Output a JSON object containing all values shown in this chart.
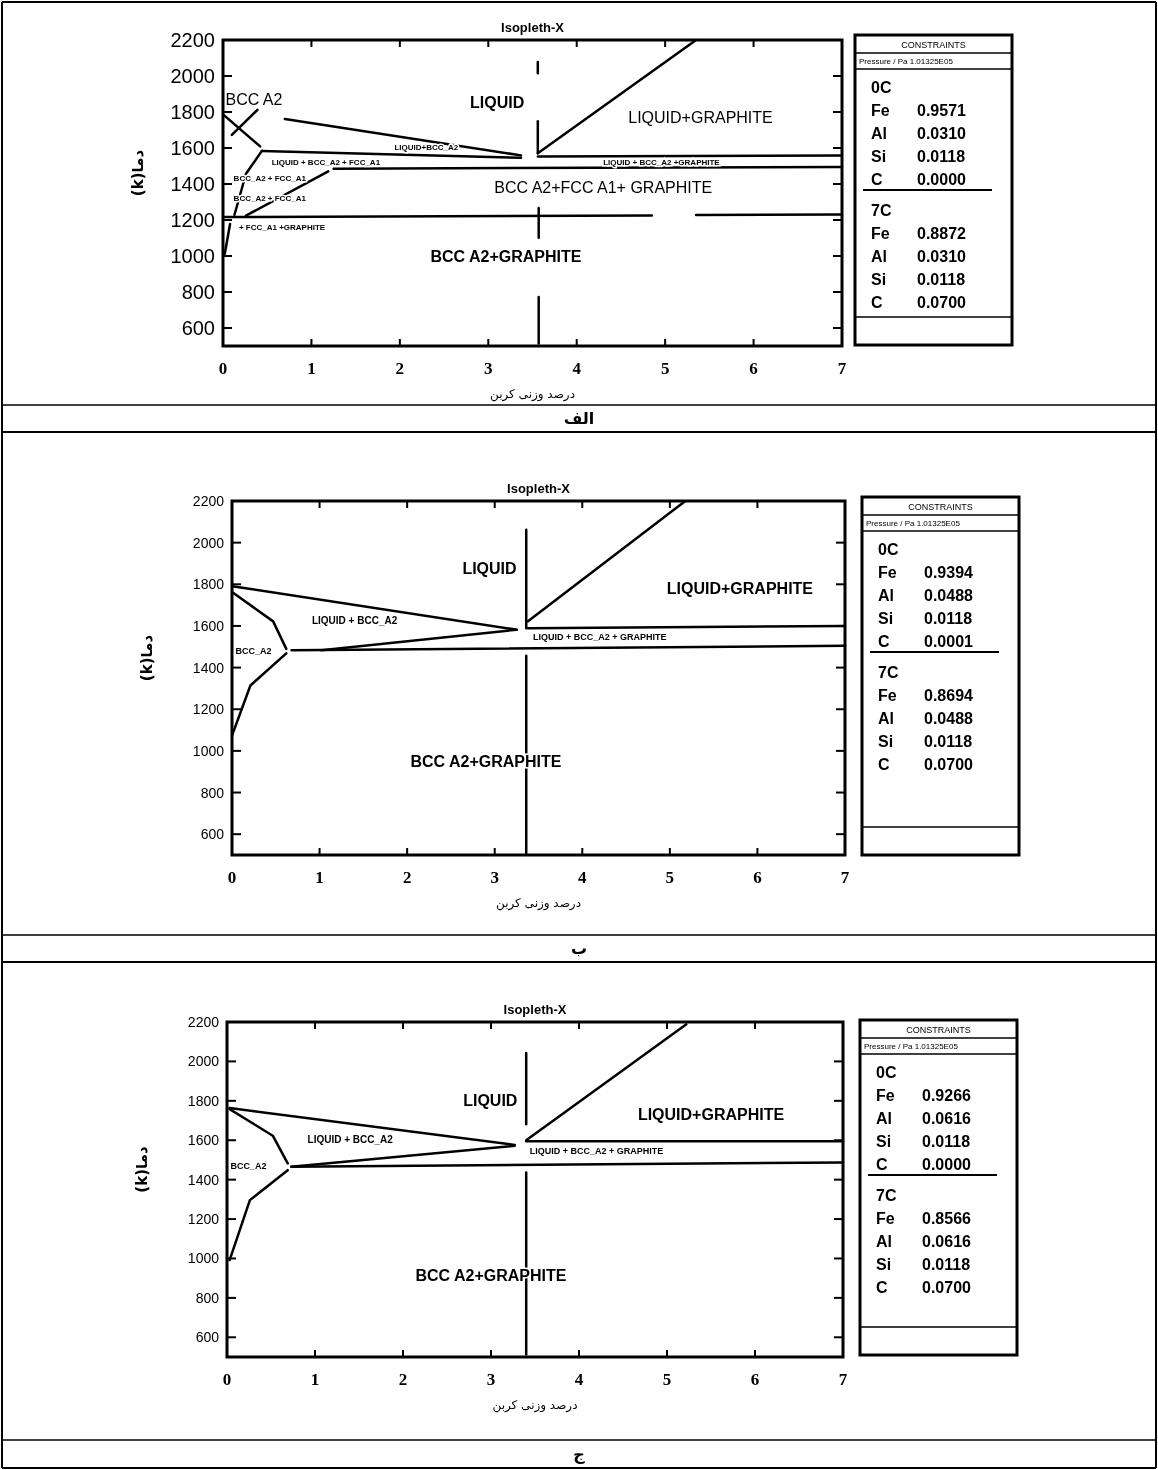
{
  "chart_data": [
    {
      "type": "line",
      "title": "Isopleth-X",
      "subtitle": "الف",
      "xlabel": "درصد وزنی کربن",
      "ylabel": "دما(k)",
      "xlim": [
        0,
        7
      ],
      "ylim": [
        500,
        2200
      ],
      "xticks": [
        0,
        1,
        2,
        3,
        4,
        5,
        6,
        7
      ],
      "yticks": [
        600,
        800,
        1000,
        1200,
        1400,
        1600,
        1800,
        2000,
        2200
      ],
      "grid": false,
      "series": [
        {
          "color": "#000000",
          "x": [
            0.7,
            3.37
          ],
          "values": [
            1761,
            1559
          ]
        },
        {
          "color": "#000000",
          "x": [
            3.56,
            3.56
          ],
          "values": [
            2078,
            2015
          ]
        },
        {
          "color": "#000000",
          "x": [
            3.56,
            3.56
          ],
          "values": [
            1749,
            1571
          ]
        },
        {
          "color": "#000000",
          "x": [
            3.57,
            3.57
          ],
          "values": [
            1267,
            1102
          ]
        },
        {
          "color": "#000000",
          "x": [
            3.57,
            3.57
          ],
          "values": [
            772,
            514
          ]
        },
        {
          "color": "#000000",
          "x": [
            3.56,
            5.35
          ],
          "values": [
            1571,
            2200
          ]
        },
        {
          "color": "#000000",
          "x": [
            3.56,
            7
          ],
          "values": [
            1553,
            1558
          ]
        },
        {
          "color": "#000000",
          "x": [
            1.25,
            7
          ],
          "values": [
            1485,
            1495
          ]
        },
        {
          "color": "#000000",
          "x": [
            0.44,
            3.37
          ],
          "values": [
            1584,
            1546
          ]
        },
        {
          "color": "#000000",
          "x": [
            0,
            4.85
          ],
          "values": [
            1216,
            1225
          ]
        },
        {
          "color": "#000000",
          "x": [
            5.35,
            7
          ],
          "values": [
            1228,
            1230
          ]
        },
        {
          "color": "#000000",
          "x": [
            0,
            0.42
          ],
          "values": [
            1787,
            1609
          ]
        },
        {
          "color": "#000000",
          "x": [
            0.1,
            0.39
          ],
          "values": [
            1673,
            1812
          ]
        },
        {
          "color": "#000000",
          "x": [
            0.44,
            0.26,
            0.13
          ],
          "values": [
            1584,
            1457,
            1229
          ]
        },
        {
          "color": "#000000",
          "x": [
            0.26,
            1.19
          ],
          "values": [
            1224,
            1470
          ]
        },
        {
          "color": "#000000",
          "x": [
            0.08,
            0.02
          ],
          "values": [
            1178,
            1013
          ]
        }
      ],
      "annotations": [
        "BCC A2",
        "LIQUID",
        "LIQUID+GRAPHITE",
        "LIQUID+BCC_A2",
        "LIQUID + BCC_A2 + FCC_A1",
        "LIQUID + BCC_A2 +GRAPHITE",
        "BCC_A2 + FCC_A1",
        "BCC A2+FCC A1+ GRAPHITE",
        "BCC_A2 + FCC_A1",
        "+ FCC_A1 +GRAPHITE",
        "BCC A2+GRAPHITE",
        "CONSTRAINTS",
        "Pressure / Pa 1.01325E05",
        "0C",
        "Fe 0.9571",
        "Al 0.0310",
        "Si 0.0118",
        "C 0.0000",
        "7C",
        "Fe 0.8872",
        "Al 0.0310",
        "Si 0.0118",
        "C 0.0700"
      ]
    },
    {
      "type": "line",
      "title": "Isopleth-X",
      "subtitle": "ب",
      "xlabel": "درصد وزنی کربن",
      "ylabel": "دما(k)",
      "xlim": [
        0,
        7
      ],
      "ylim": [
        500,
        2200
      ],
      "xticks": [
        0,
        1,
        2,
        3,
        4,
        5,
        6,
        7
      ],
      "yticks": [
        600,
        800,
        1000,
        1200,
        1400,
        1600,
        1800,
        2000,
        2200
      ],
      "grid": false,
      "series": [
        {
          "color": "#000000",
          "x": [
            0,
            3.25
          ],
          "values": [
            1791,
            1582
          ]
        },
        {
          "color": "#000000",
          "x": [
            1.02,
            3.25
          ],
          "values": [
            1483,
            1582
          ]
        },
        {
          "color": "#000000",
          "x": [
            0.68,
            7
          ],
          "values": [
            1483,
            1505
          ]
        },
        {
          "color": "#000000",
          "x": [
            3.38,
            7
          ],
          "values": [
            1589,
            1600
          ]
        },
        {
          "color": "#000000",
          "x": [
            3.38,
            5.17
          ],
          "values": [
            1622,
            2198
          ]
        },
        {
          "color": "#000000",
          "x": [
            3.36,
            3.36
          ],
          "values": [
            2062,
            1589
          ]
        },
        {
          "color": "#000000",
          "x": [
            3.36,
            3.36
          ],
          "values": [
            1457,
            505
          ]
        },
        {
          "color": "#000000",
          "x": [
            0,
            0.47,
            0.62
          ],
          "values": [
            1763,
            1622,
            1490
          ]
        },
        {
          "color": "#000000",
          "x": [
            0.62,
            0.21,
            0
          ],
          "values": [
            1468,
            1314,
            1073
          ]
        }
      ],
      "annotations": [
        "LIQUID",
        "LIQUID+GRAPHITE",
        "LIQUID + BCC_A2",
        "BCC_A2",
        "LIQUID + BCC_A2 + GRAPHITE",
        "BCC A2+GRAPHITE",
        "CONSTRAINTS",
        "Pressure / Pa 1.01325E05",
        "0C",
        "Fe 0.9394",
        "Al 0.0488",
        "Si 0.0118",
        "C 0.0001",
        "7C",
        "Fe 0.8694",
        "Al 0.0488",
        "Si 0.0118",
        "C 0.0700"
      ]
    },
    {
      "type": "line",
      "title": "Isopleth-X",
      "subtitle": "ج",
      "xlabel": "درصد وزنی کربن",
      "ylabel": "دما(k)",
      "xlim": [
        0,
        7
      ],
      "ylim": [
        500,
        2200
      ],
      "xticks": [
        0,
        1,
        2,
        3,
        4,
        5,
        6,
        7
      ],
      "yticks": [
        600,
        800,
        1000,
        1200,
        1400,
        1600,
        1800,
        2000,
        2200
      ],
      "grid": false,
      "series": [
        {
          "color": "#000000",
          "x": [
            0.03,
            3.27
          ],
          "values": [
            1763,
            1576
          ]
        },
        {
          "color": "#000000",
          "x": [
            0.73,
            3.27
          ],
          "values": [
            1466,
            1572
          ]
        },
        {
          "color": "#000000",
          "x": [
            0.73,
            7
          ],
          "values": [
            1466,
            1487
          ]
        },
        {
          "color": "#000000",
          "x": [
            3.4,
            7
          ],
          "values": [
            1595,
            1595
          ]
        },
        {
          "color": "#000000",
          "x": [
            3.4,
            5.22
          ],
          "values": [
            1600,
            2188
          ]
        },
        {
          "color": "#000000",
          "x": [
            3.4,
            3.4
          ],
          "values": [
            2043,
            1681
          ]
        },
        {
          "color": "#000000",
          "x": [
            3.4,
            3.4
          ],
          "values": [
            1436,
            513
          ]
        },
        {
          "color": "#000000",
          "x": [
            0.03,
            0.52,
            0.69
          ],
          "values": [
            1758,
            1623,
            1483
          ]
        },
        {
          "color": "#000000",
          "x": [
            0.69,
            0.26,
            0.03
          ],
          "values": [
            1448,
            1296,
            992
          ]
        }
      ],
      "annotations": [
        "LIQUID",
        "LIQUID+GRAPHITE",
        "LIQUID + BCC_A2",
        "BCC_A2",
        "LIQUID + BCC_A2 + GRAPHITE",
        "BCC A2+GRAPHITE",
        "CONSTRAINTS",
        "Pressure / Pa 1.01325E05",
        "0C",
        "Fe 0.9266",
        "Al 0.0616",
        "Si 0.0118",
        "C 0.0000",
        "7C",
        "Fe 0.8566",
        "Al 0.0616",
        "Si 0.0118",
        "C 0.0700"
      ]
    }
  ]
}
